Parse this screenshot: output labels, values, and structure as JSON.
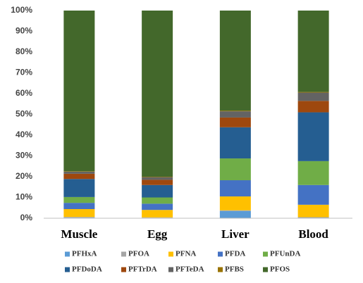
{
  "chart_data": {
    "type": "stacked_bar",
    "categories": [
      "Muscle",
      "Egg",
      "Liver",
      "Blood"
    ],
    "series": [
      {
        "name": "PFHxA",
        "color": "#5b9bd5",
        "values": [
          0.3,
          0.2,
          3.5,
          0.3
        ]
      },
      {
        "name": "PFOA",
        "color": "#a5a5a5",
        "values": [
          0.3,
          0.2,
          0.3,
          0.2
        ]
      },
      {
        "name": "PFNA",
        "color": "#ffc000",
        "values": [
          3.8,
          3.6,
          6.7,
          6
        ]
      },
      {
        "name": "PFDA",
        "color": "#4472c4",
        "values": [
          3,
          3,
          7.8,
          9.5
        ]
      },
      {
        "name": "PFUnDA",
        "color": "#70ad47",
        "values": [
          2.8,
          3,
          10.5,
          11.5
        ]
      },
      {
        "name": "PFDoDA",
        "color": "#255e91",
        "values": [
          8.7,
          6,
          15,
          23.5
        ]
      },
      {
        "name": "PFTrDA",
        "color": "#9e480e",
        "values": [
          2.5,
          2.5,
          4.7,
          5.5
        ]
      },
      {
        "name": "PFTeDA",
        "color": "#636363",
        "values": [
          1,
          1.3,
          3,
          4
        ]
      },
      {
        "name": "PFBS",
        "color": "#997300",
        "values": [
          0.2,
          0.2,
          0.3,
          0.3
        ]
      },
      {
        "name": "PFOS",
        "color": "#43682b",
        "values": [
          77.4,
          80,
          48.2,
          39.2
        ]
      }
    ],
    "ylim": [
      0,
      100
    ],
    "yticks": [
      {
        "value": 0,
        "label": "0%"
      },
      {
        "value": 10,
        "label": "10%"
      },
      {
        "value": 20,
        "label": "20%"
      },
      {
        "value": 30,
        "label": "30%"
      },
      {
        "value": 40,
        "label": "40%"
      },
      {
        "value": 50,
        "label": "50%"
      },
      {
        "value": 60,
        "label": "60%"
      },
      {
        "value": 70,
        "label": "70%"
      },
      {
        "value": 80,
        "label": "80%"
      },
      {
        "value": 90,
        "label": "90%"
      },
      {
        "value": 100,
        "label": "100%"
      }
    ],
    "grid": false,
    "legend": "bottom"
  }
}
